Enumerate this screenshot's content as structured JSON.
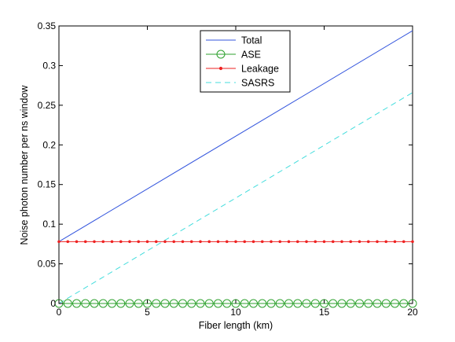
{
  "chart_data": {
    "type": "line",
    "title": "",
    "xlabel": "Fiber length (km)",
    "ylabel": "Noise photon number per ns window",
    "xlim": [
      0,
      20
    ],
    "ylim": [
      0,
      0.35
    ],
    "xticks": [
      0,
      5,
      10,
      15,
      20
    ],
    "xtick_labels": [
      "0",
      "5",
      "10",
      "15",
      "20"
    ],
    "yticks": [
      0,
      0.05,
      0.1,
      0.15,
      0.2,
      0.25,
      0.3,
      0.35
    ],
    "ytick_labels": [
      "0",
      "0.05",
      "0.1",
      "0.15",
      "0.2",
      "0.25",
      "0.3",
      "0.35"
    ],
    "grid": false,
    "legend_position": "top-center",
    "x": [
      0,
      20
    ],
    "series": [
      {
        "name": "Total",
        "x": [
          0,
          20
        ],
        "y": [
          0.078,
          0.344
        ],
        "color": "#3355dd",
        "style": "solid",
        "marker": "none"
      },
      {
        "name": "ASE",
        "x": [
          0,
          20
        ],
        "y": [
          0.0,
          0.0
        ],
        "color": "#2ca02c",
        "style": "solid",
        "marker": "circle",
        "marker_count": 41
      },
      {
        "name": "Leakage",
        "x": [
          0,
          20
        ],
        "y": [
          0.078,
          0.078
        ],
        "color": "#ee2222",
        "style": "solid",
        "marker": "dot",
        "marker_count": 41
      },
      {
        "name": "SASRS",
        "x": [
          0,
          20
        ],
        "y": [
          0.0,
          0.266
        ],
        "color": "#44dddd",
        "style": "dashed",
        "marker": "none"
      }
    ]
  }
}
